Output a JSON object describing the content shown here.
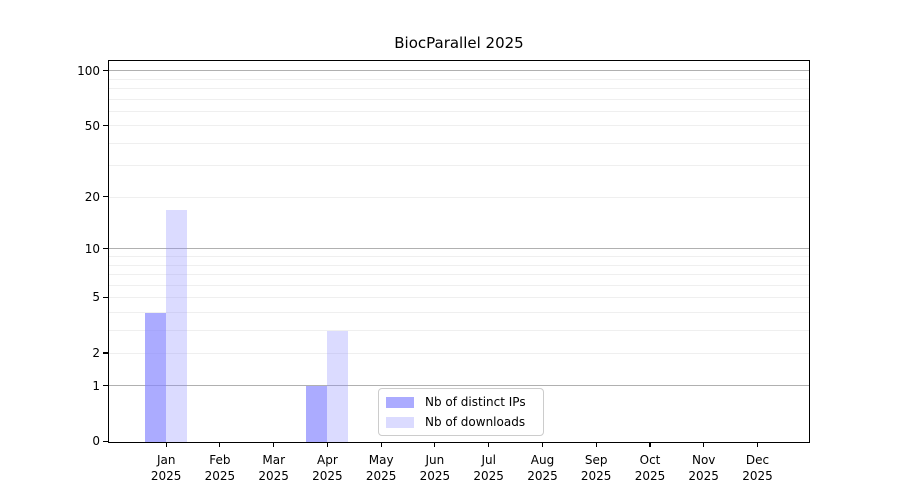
{
  "chart_data": {
    "type": "bar",
    "title": "BiocParallel 2025",
    "categories": [
      {
        "label": "Jan",
        "sub": "2025"
      },
      {
        "label": "Feb",
        "sub": "2025"
      },
      {
        "label": "Mar",
        "sub": "2025"
      },
      {
        "label": "Apr",
        "sub": "2025"
      },
      {
        "label": "May",
        "sub": "2025"
      },
      {
        "label": "Jun",
        "sub": "2025"
      },
      {
        "label": "Jul",
        "sub": "2025"
      },
      {
        "label": "Aug",
        "sub": "2025"
      },
      {
        "label": "Sep",
        "sub": "2025"
      },
      {
        "label": "Oct",
        "sub": "2025"
      },
      {
        "label": "Nov",
        "sub": "2025"
      },
      {
        "label": "Dec",
        "sub": "2025"
      }
    ],
    "series": [
      {
        "name": "Nb of distinct IPs",
        "key": "distinct-ips",
        "base_color": "#8888ff",
        "alpha": 0.7,
        "rendered_color": "#aaaafa",
        "values": [
          4,
          0,
          0,
          1,
          0,
          0,
          0,
          0,
          0,
          0,
          0,
          0
        ]
      },
      {
        "name": "Nb of downloads",
        "key": "downloads",
        "base_color": "#8888ff",
        "alpha": 0.3,
        "rendered_color": "#dadafb",
        "values": [
          17,
          0,
          0,
          3,
          0,
          0,
          0,
          0,
          0,
          0,
          0,
          0
        ]
      }
    ],
    "xlabel": "",
    "ylabel": "",
    "yscale": "log1p",
    "ylim": [
      0,
      115
    ],
    "yticks": [
      0,
      1,
      2,
      5,
      10,
      20,
      50,
      100
    ],
    "major_gridlines": [
      1,
      10,
      100
    ],
    "minor_gridlines": [
      2,
      3,
      4,
      5,
      6,
      7,
      8,
      9,
      20,
      30,
      40,
      50,
      60,
      70,
      80,
      90
    ],
    "grid": "on",
    "legend_position": "lower center"
  },
  "colors": {
    "spine": "#000000",
    "major_grid": "#b0b0b0",
    "minor_grid": "#efefef",
    "background": "#ffffff",
    "legend_border": "#cccccc",
    "text": "#000000"
  }
}
